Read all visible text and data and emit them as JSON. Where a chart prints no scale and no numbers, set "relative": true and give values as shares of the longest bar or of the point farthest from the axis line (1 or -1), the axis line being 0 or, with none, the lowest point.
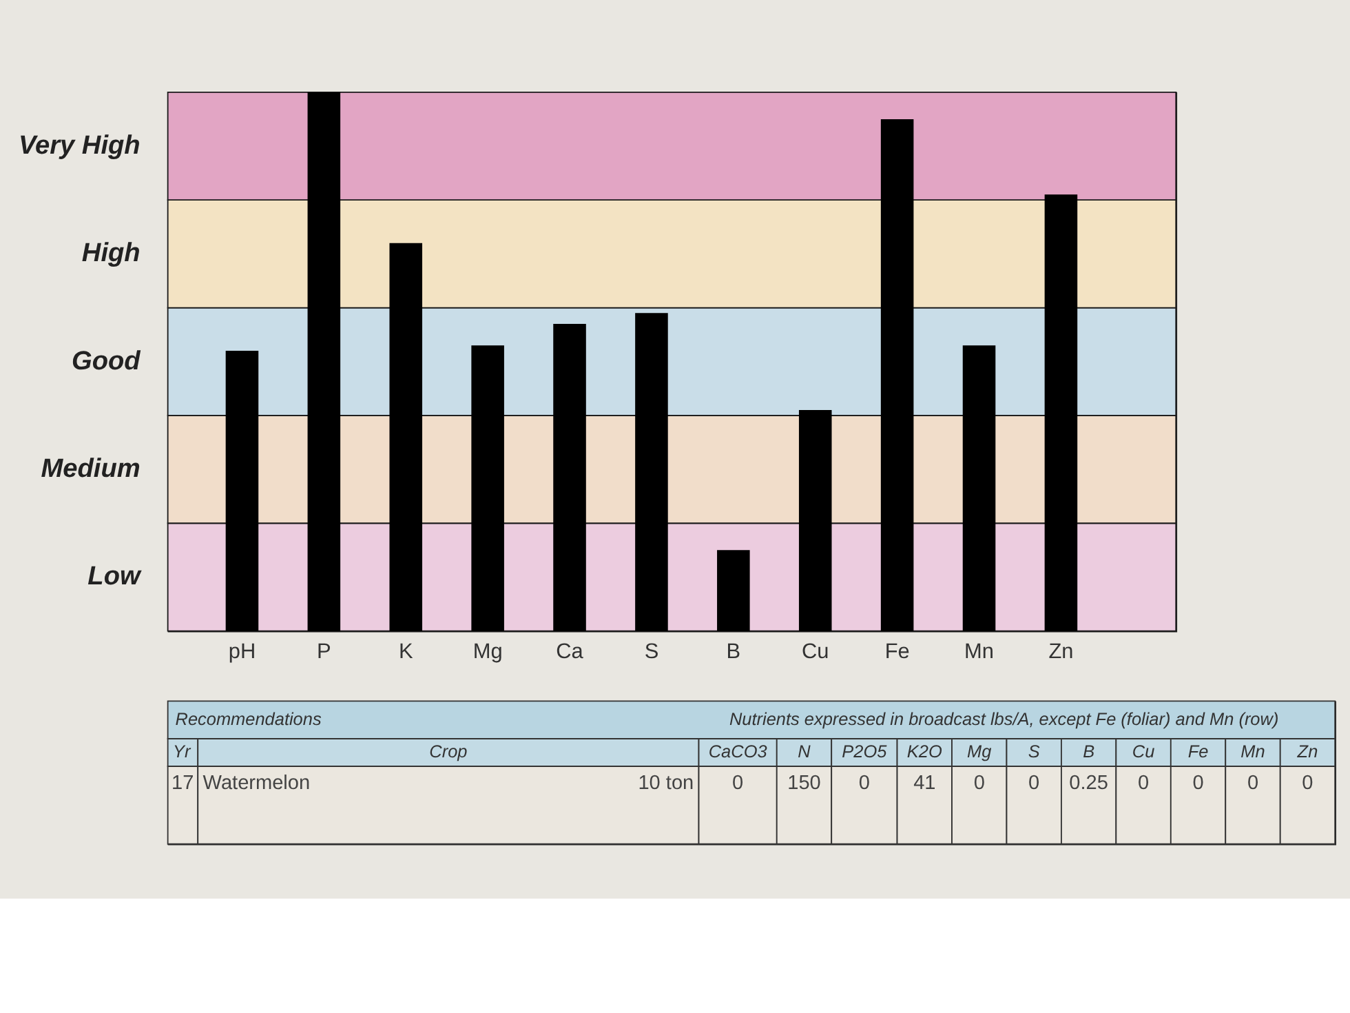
{
  "chart_data": [
    {
      "type": "bar",
      "relative": true,
      "categories": [
        "pH",
        "P",
        "K",
        "Mg",
        "Ca",
        "S",
        "B",
        "Cu",
        "Fe",
        "Mn",
        "Zn"
      ],
      "series": [
        {
          "color": "#000000",
          "values": [
            0.52,
            1.0,
            0.72,
            0.53,
            0.57,
            0.59,
            0.15,
            0.41,
            0.95,
            0.53,
            0.81
          ]
        }
      ],
      "bands": [
        {
          "axis": "y",
          "from": 0,
          "to": 0.2,
          "label": "Low",
          "color": "#ecccdf"
        },
        {
          "axis": "y",
          "from": 0.2,
          "to": 0.4,
          "label": "Medium",
          "color": "#f1ddca"
        },
        {
          "axis": "y",
          "from": 0.4,
          "to": 0.6,
          "label": "Good",
          "color": "#c9dde8"
        },
        {
          "axis": "y",
          "from": 0.6,
          "to": 0.8,
          "label": "High",
          "color": "#f3e3c3"
        },
        {
          "axis": "y",
          "from": 0.8,
          "to": 1.0,
          "label": "Very High",
          "color": "#e2a5c4"
        }
      ]
    },
    {
      "type": "other",
      "title": "Recommendations",
      "subtitle": "Nutrients expressed in broadcast lbs/A, except Fe (foliar) and Mn (row)",
      "categories": [
        "CaCO3",
        "N",
        "P2O5",
        "K2O",
        "Mg",
        "S",
        "B",
        "Cu",
        "Fe",
        "Mn",
        "Zn"
      ],
      "values": [
        0,
        150,
        0,
        41,
        0,
        0,
        0.25,
        0,
        0,
        0,
        0
      ],
      "data_labels": true,
      "annotations": [
        "Yr",
        "Crop",
        "17",
        "Watermelon",
        "10 ton"
      ]
    }
  ]
}
